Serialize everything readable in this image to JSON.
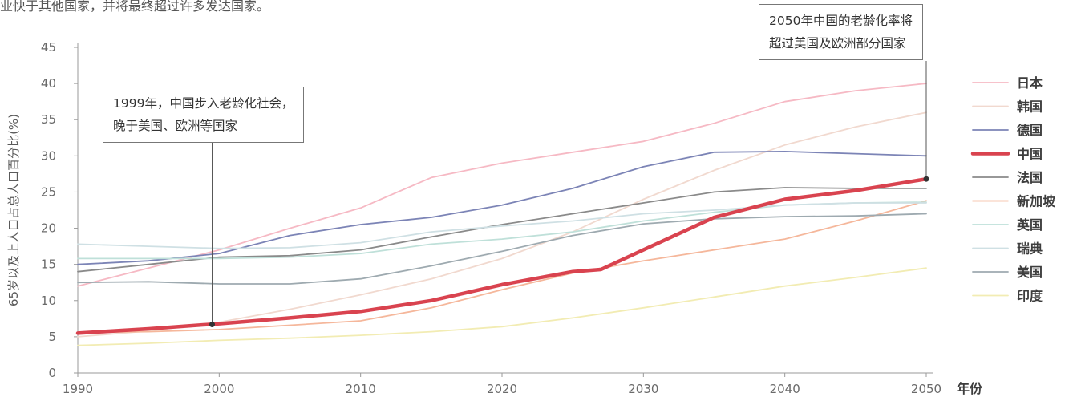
{
  "intro_text": "业快于其他国家，并将最终超过许多发达国家。",
  "chart_data": {
    "type": "line",
    "ylabel": "65岁以及上人口占总人口百分比(%)",
    "xlabel": "年份",
    "xlim": [
      1990,
      2050
    ],
    "ylim": [
      0,
      45
    ],
    "x_ticks": [
      "1990",
      "2000",
      "2010",
      "2020",
      "2030",
      "2040",
      "2050"
    ],
    "y_ticks": [
      "0",
      "5",
      "10",
      "15",
      "20",
      "25",
      "30",
      "35",
      "40",
      "45"
    ],
    "grid": false,
    "legend_position": "right",
    "series": [
      {
        "name": "日本",
        "color": "#f6b9c4",
        "x": [
          1990,
          1995,
          2000,
          2005,
          2010,
          2015,
          2020,
          2025,
          2030,
          2035,
          2040,
          2045,
          2050
        ],
        "y": [
          12,
          14.5,
          17,
          20,
          22.8,
          27,
          29,
          30.5,
          32,
          34.5,
          37.5,
          39,
          40
        ]
      },
      {
        "name": "韩国",
        "color": "#f1d9cf",
        "x": [
          1990,
          1995,
          2000,
          2005,
          2010,
          2015,
          2020,
          2025,
          2030,
          2035,
          2040,
          2045,
          2050
        ],
        "y": [
          5,
          5.8,
          7,
          8.8,
          10.8,
          13,
          15.8,
          19.5,
          24,
          28,
          31.5,
          34,
          36
        ]
      },
      {
        "name": "德国",
        "color": "#7c84b6",
        "x": [
          1990,
          1995,
          2000,
          2005,
          2010,
          2015,
          2020,
          2025,
          2030,
          2035,
          2040,
          2045,
          2050
        ],
        "y": [
          15,
          15.5,
          16.5,
          19,
          20.5,
          21.5,
          23.2,
          25.5,
          28.5,
          30.5,
          30.6,
          30.3,
          30
        ]
      },
      {
        "name": "中国",
        "color": "#d9434f",
        "x": [
          1990,
          1995,
          2000,
          2005,
          2010,
          2015,
          2020,
          2025,
          2027,
          2030,
          2035,
          2040,
          2045,
          2050
        ],
        "y": [
          5.5,
          6.1,
          6.8,
          7.6,
          8.5,
          10,
          12.2,
          14,
          14.3,
          17,
          21.5,
          24,
          25.2,
          26.8
        ]
      },
      {
        "name": "法国",
        "color": "#8a8a8a",
        "x": [
          1990,
          1995,
          2000,
          2005,
          2010,
          2015,
          2020,
          2025,
          2030,
          2035,
          2040,
          2045,
          2050
        ],
        "y": [
          14,
          15,
          16,
          16.2,
          17,
          18.8,
          20.5,
          22,
          23.5,
          25,
          25.6,
          25.5,
          25.5
        ]
      },
      {
        "name": "新加坡",
        "color": "#f5b79b",
        "x": [
          1990,
          1995,
          2000,
          2005,
          2010,
          2015,
          2020,
          2025,
          2030,
          2035,
          2040,
          2045,
          2050
        ],
        "y": [
          5.6,
          5.7,
          6,
          6.6,
          7.2,
          9,
          11.5,
          13.8,
          15.5,
          17,
          18.5,
          21,
          23.8
        ]
      },
      {
        "name": "英国",
        "color": "#bfe0d9",
        "x": [
          1990,
          1995,
          2000,
          2005,
          2010,
          2015,
          2020,
          2025,
          2030,
          2035,
          2040,
          2045,
          2050
        ],
        "y": [
          15.8,
          15.8,
          15.8,
          16,
          16.5,
          17.8,
          18.5,
          19.5,
          21,
          22.2,
          23.2,
          23.5,
          23.6
        ]
      },
      {
        "name": "瑞典",
        "color": "#cfe0e4",
        "x": [
          1990,
          1995,
          2000,
          2005,
          2010,
          2015,
          2020,
          2025,
          2030,
          2035,
          2040,
          2045,
          2050
        ],
        "y": [
          17.8,
          17.5,
          17.2,
          17.3,
          18,
          19.5,
          20.3,
          21,
          22,
          22.5,
          23.2,
          23.5,
          23.5
        ]
      },
      {
        "name": "美国",
        "color": "#9eaab0",
        "x": [
          1990,
          1995,
          2000,
          2005,
          2010,
          2015,
          2020,
          2025,
          2030,
          2035,
          2040,
          2045,
          2050
        ],
        "y": [
          12.5,
          12.6,
          12.3,
          12.3,
          13,
          14.8,
          16.8,
          19,
          20.6,
          21.3,
          21.6,
          21.7,
          22
        ]
      },
      {
        "name": "印度",
        "color": "#f2ecb3",
        "x": [
          1990,
          1995,
          2000,
          2005,
          2010,
          2015,
          2020,
          2025,
          2030,
          2035,
          2040,
          2045,
          2050
        ],
        "y": [
          3.8,
          4.1,
          4.5,
          4.8,
          5.2,
          5.7,
          6.4,
          7.6,
          9,
          10.5,
          12,
          13.2,
          14.5
        ]
      }
    ],
    "annotations": [
      {
        "lines": [
          "1999年，中国步入老龄化社会，",
          "晚于美国、欧洲等国家"
        ],
        "x": 1999.5,
        "y": 6.7
      },
      {
        "lines": [
          "2050年中国的老龄化率将",
          "超过美国及欧洲部分国家"
        ],
        "x": 2050,
        "y": 26.8
      }
    ]
  }
}
